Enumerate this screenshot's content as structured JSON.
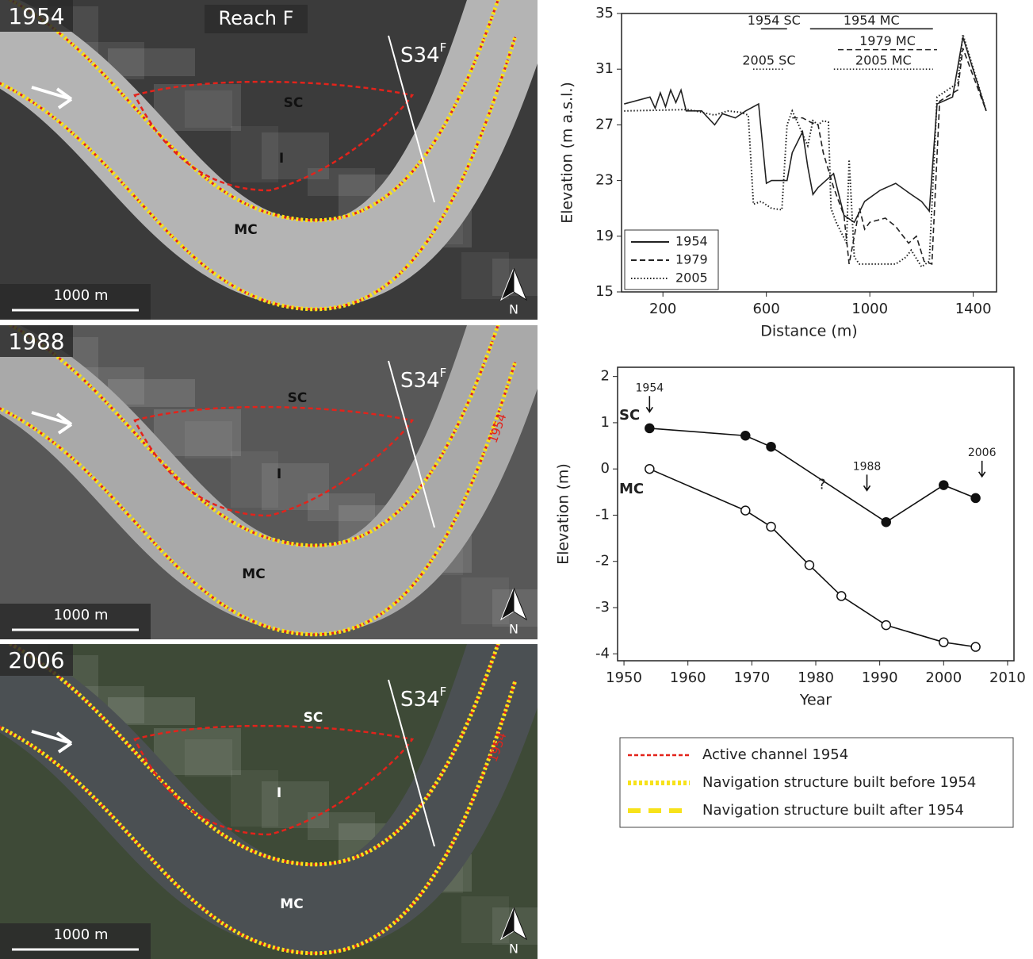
{
  "maps": [
    {
      "year": "1954",
      "reach": "Reach F",
      "section": "S34",
      "section_sup": "F",
      "labels": [
        "SC",
        "I",
        "MC"
      ],
      "scale": "1000 m",
      "north": "N",
      "background": "#3b3b3b",
      "river": "#b4b4b4"
    },
    {
      "year": "1988",
      "section": "S34",
      "section_sup": "F",
      "labels": [
        "SC",
        "I",
        "MC"
      ],
      "scale": "1000 m",
      "north": "N",
      "old_channel": "1954",
      "background": "#585858",
      "river": "#a9a9a9"
    },
    {
      "year": "2006",
      "section": "S34",
      "section_sup": "F",
      "labels": [
        "SC",
        "I",
        "MC"
      ],
      "scale": "1000 m",
      "north": "N",
      "old_channel": "1954",
      "background": "#3e4a37",
      "river": "#4b5053"
    }
  ],
  "chart_data": [
    {
      "type": "line",
      "xlabel": "Distance (m)",
      "ylabel": "Elevation (m a.s.l.)",
      "xlim": [
        40,
        1490
      ],
      "ylim": [
        15,
        35
      ],
      "xticks": [
        200,
        600,
        1000,
        1400
      ],
      "yticks": [
        15,
        19,
        23,
        27,
        31,
        35
      ],
      "legend": "bottom-left",
      "series": [
        {
          "name": "1954",
          "style": "solid",
          "color": "#222222",
          "x": [
            50,
            150,
            170,
            190,
            210,
            230,
            250,
            270,
            290,
            350,
            400,
            430,
            480,
            520,
            570,
            600,
            620,
            680,
            700,
            740,
            760,
            780,
            800,
            860,
            880,
            900,
            940,
            980,
            1040,
            1100,
            1160,
            1200,
            1230,
            1260,
            1320,
            1360,
            1450
          ],
          "values": [
            28.5,
            29,
            28.2,
            29.3,
            28.3,
            29.5,
            28.6,
            29.5,
            28,
            28,
            27,
            27.8,
            27.5,
            28,
            28.5,
            22.8,
            23,
            23,
            25,
            26.5,
            24,
            22,
            22.5,
            23.5,
            22,
            20.5,
            20,
            21.5,
            22.3,
            22.8,
            22,
            21.5,
            20.8,
            28.5,
            29,
            33.3,
            28
          ]
        },
        {
          "name": "1979",
          "style": "dashed",
          "color": "#222222",
          "x": [
            700,
            740,
            770,
            800,
            820,
            860,
            900,
            920,
            940,
            960,
            980,
            1000,
            1060,
            1100,
            1150,
            1180,
            1210,
            1240,
            1270,
            1340,
            1360,
            1450
          ],
          "values": [
            27.5,
            27.5,
            27.2,
            27,
            25,
            22.5,
            20.5,
            17,
            19,
            21,
            19.5,
            20,
            20.3,
            19.7,
            18.5,
            19,
            17.2,
            17,
            28.7,
            29.5,
            32.5,
            28
          ]
        },
        {
          "name": "2005",
          "style": "dotted",
          "color": "#222222",
          "x": [
            50,
            300,
            400,
            450,
            500,
            530,
            550,
            580,
            620,
            660,
            680,
            700,
            720,
            760,
            780,
            800,
            820,
            840,
            850,
            870,
            910,
            920,
            940,
            960,
            1000,
            1100,
            1140,
            1160,
            1200,
            1230,
            1260,
            1340,
            1360,
            1450
          ],
          "values": [
            28,
            28.1,
            27.7,
            28,
            27.9,
            27.7,
            21.3,
            21.5,
            21,
            20.9,
            27,
            28,
            27.2,
            25.5,
            27.3,
            27,
            27.3,
            27.2,
            21,
            20,
            18.5,
            24.5,
            17.5,
            17,
            17,
            17,
            17.5,
            18,
            16.8,
            17.2,
            29,
            30,
            33.5,
            28
          ]
        }
      ],
      "annotations": [
        {
          "label": "1954 SC",
          "style": "solid",
          "x": [
            579,
            680
          ],
          "y": 33.9
        },
        {
          "label": "1954 MC",
          "style": "solid",
          "x": [
            769,
            1244
          ],
          "y": 33.9
        },
        {
          "label": "1979 MC",
          "style": "dashed",
          "x": [
            877,
            1260
          ],
          "y": 32.4
        },
        {
          "label": "2005 SC",
          "style": "dotted",
          "x": [
            549,
            671
          ],
          "y": 31
        },
        {
          "label": "2005 MC",
          "style": "dotted",
          "x": [
            861,
            1244
          ],
          "y": 31
        }
      ]
    },
    {
      "type": "line",
      "xlabel": "Year",
      "ylabel": "Elevation (m)",
      "xlim": [
        1949,
        2011
      ],
      "ylim": [
        -4.15,
        2.2
      ],
      "xticks": [
        1950,
        1960,
        1970,
        1980,
        1990,
        2000,
        2010
      ],
      "yticks": [
        -4,
        -3,
        -2,
        -1,
        0,
        1,
        2
      ],
      "series": [
        {
          "name": "SC",
          "marker": "filled",
          "color": "#111111",
          "x": [
            1954,
            1969,
            1973,
            1991,
            2000,
            2005
          ],
          "values": [
            0.88,
            0.72,
            0.48,
            -1.15,
            -0.35,
            -0.63
          ]
        },
        {
          "name": "MC",
          "marker": "open",
          "color": "#111111",
          "x": [
            1954,
            1969,
            1973,
            1979,
            1984,
            1991,
            2000,
            2005
          ],
          "values": [
            0,
            -0.9,
            -1.25,
            -2.08,
            -2.75,
            -3.38,
            -3.75,
            -3.85
          ]
        }
      ],
      "arrows": [
        {
          "label": "1954",
          "x": 1954,
          "y": 1.2
        },
        {
          "label": "1988",
          "x": 1988,
          "y": -0.5
        },
        {
          "label": "2006",
          "x": 2006,
          "y": -0.2
        }
      ],
      "query": {
        "label": "?",
        "x": 1981,
        "y": -0.35
      }
    }
  ],
  "legend": {
    "entries": [
      {
        "label": "Active channel 1954",
        "color": "#e3231b",
        "style": "dashed"
      },
      {
        "label": "Navigation structure built before 1954",
        "color": "#f7e21a",
        "style": "dotted"
      },
      {
        "label": "Navigation structure built after 1954",
        "color": "#f7e21a",
        "style": "dashed"
      }
    ]
  }
}
